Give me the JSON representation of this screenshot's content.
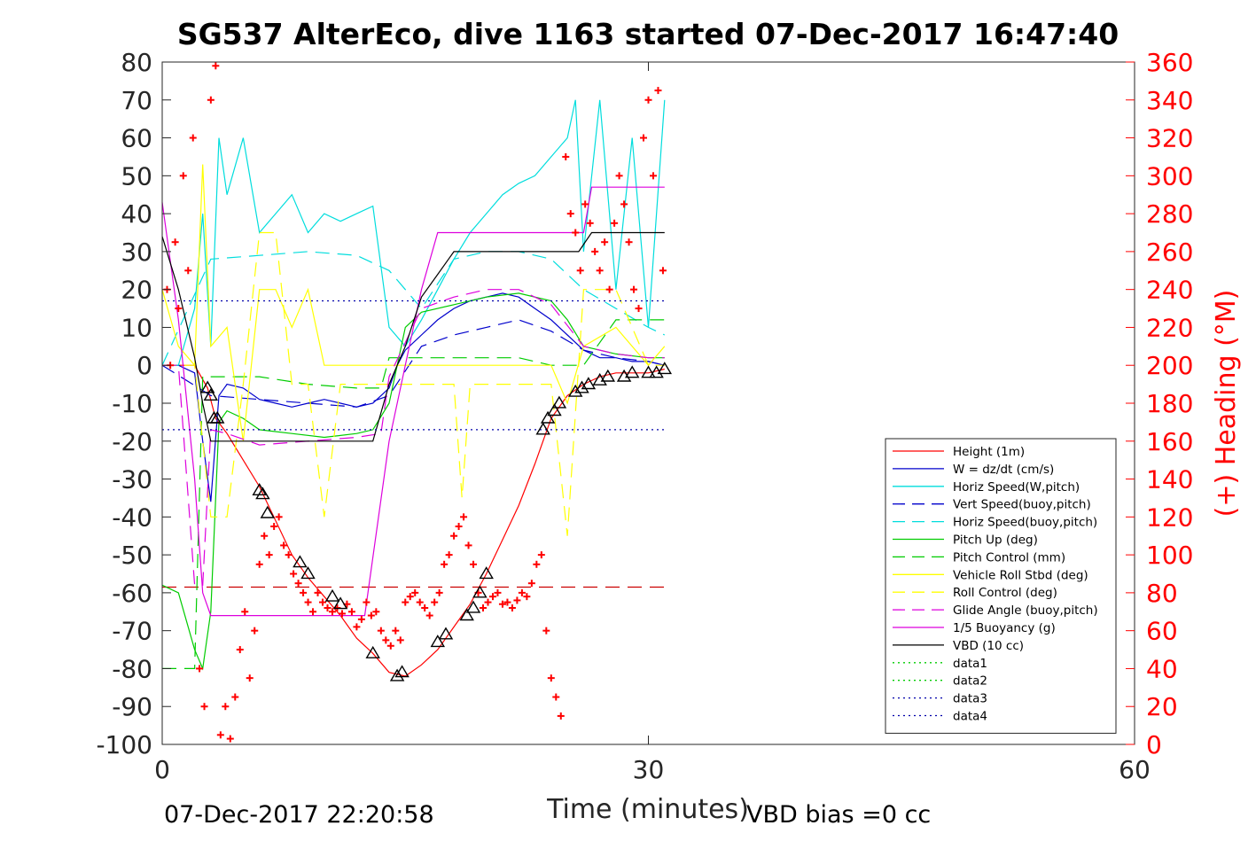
{
  "chart_data": {
    "type": "line",
    "title": "SG537 AlterEco, dive 1163 started 07-Dec-2017 16:47:40",
    "xlabel": "Time (minutes)",
    "ylabel": "",
    "y2label": "(+) Heading (°M)",
    "xlim": [
      0,
      60
    ],
    "ylim": [
      -100,
      80
    ],
    "y2lim": [
      0,
      360
    ],
    "x_ticks": [
      "0",
      "30",
      "60"
    ],
    "y_ticks": [
      "-100",
      "-90",
      "-80",
      "-70",
      "-60",
      "-50",
      "-40",
      "-30",
      "-20",
      "-10",
      "0",
      "10",
      "20",
      "30",
      "40",
      "50",
      "60",
      "70",
      "80"
    ],
    "y2_ticks": [
      "0",
      "20",
      "40",
      "60",
      "80",
      "100",
      "120",
      "140",
      "160",
      "180",
      "200",
      "220",
      "240",
      "260",
      "280",
      "300",
      "320",
      "340",
      "360"
    ],
    "grid": false,
    "legend_position": "bottom-right",
    "colors": {
      "heading": "#ff0000",
      "right_axis": "#ff0000"
    },
    "footer_left": "07-Dec-2017 22:20:58",
    "footer_right": "VBD bias =0 cc",
    "series": [
      {
        "name": "Height (1m)",
        "color": "#ff0000",
        "dash": "solid",
        "x": [
          0.0,
          2.0,
          2.8,
          3.3,
          4.0,
          5.0,
          6.0,
          7.0,
          8.0,
          9.0,
          10.0,
          11.0,
          12.0,
          13.0,
          14.0,
          15.0,
          16.0,
          17.0,
          18.0,
          19.0,
          20.0,
          21.0,
          22.0,
          23.0,
          24.0,
          25.0,
          26.0,
          27.0,
          28.0,
          29.0,
          30.0,
          31.0
        ],
        "y": [
          0,
          0,
          -6,
          -14,
          -18,
          -25,
          -32,
          -41,
          -50,
          -56,
          -61,
          -66,
          -72,
          -76,
          -81,
          -82,
          -79,
          -75,
          -69,
          -63,
          -55,
          -46,
          -37,
          -26,
          -14,
          -8,
          -5,
          -3,
          -2,
          -2,
          -2,
          -1
        ]
      },
      {
        "name": "W = dz/dt (cm/s)",
        "color": "#0000cc",
        "dash": "solid",
        "x": [
          0,
          1,
          2,
          2.5,
          3,
          3.5,
          4,
          5,
          6,
          7,
          8,
          9,
          10,
          11,
          12,
          13,
          14,
          14.5,
          15,
          16,
          17,
          18,
          19,
          20,
          21,
          22,
          23,
          24,
          25,
          26,
          27,
          28,
          29,
          30,
          31
        ],
        "y": [
          0,
          0,
          -2,
          -20,
          -36,
          -8,
          -5,
          -6,
          -9,
          -10,
          -11,
          -10,
          -9,
          -10,
          -11,
          -10,
          -6,
          0,
          4,
          8,
          12,
          15,
          17,
          18,
          19,
          18,
          15,
          12,
          8,
          4,
          2,
          2,
          1,
          1,
          0
        ]
      },
      {
        "name": "Horiz Speed(W,pitch)",
        "color": "#00dddd",
        "dash": "solid",
        "x": [
          0,
          1,
          2,
          2.5,
          3,
          3.5,
          4,
          5,
          6,
          7,
          8,
          9,
          10,
          11,
          12,
          13,
          14,
          15,
          16,
          17,
          18,
          19,
          20,
          21,
          22,
          23,
          24,
          25,
          25.5,
          26,
          27,
          28,
          29,
          30,
          31
        ],
        "y": [
          0,
          0,
          15,
          40,
          5,
          60,
          45,
          60,
          35,
          40,
          45,
          35,
          40,
          38,
          40,
          42,
          10,
          5,
          12,
          20,
          28,
          35,
          40,
          45,
          48,
          50,
          55,
          60,
          70,
          30,
          70,
          20,
          60,
          10,
          70
        ]
      },
      {
        "name": "Vert Speed(buoy,pitch)",
        "color": "#0000cc",
        "dash": "dashed",
        "x": [
          0,
          3,
          6,
          9,
          12,
          14,
          16,
          18,
          20,
          22,
          24,
          26,
          28,
          30,
          31
        ],
        "y": [
          0,
          -8,
          -9,
          -10,
          -11,
          -8,
          5,
          8,
          10,
          12,
          9,
          4,
          2,
          1,
          0
        ]
      },
      {
        "name": "Horiz Speed(buoy,pitch)",
        "color": "#00dddd",
        "dash": "dashed",
        "x": [
          0,
          3,
          6,
          9,
          12,
          14,
          16,
          18,
          20,
          22,
          24,
          26,
          28,
          30,
          31
        ],
        "y": [
          0,
          28,
          29,
          30,
          29,
          25,
          15,
          28,
          30,
          30,
          28,
          20,
          15,
          10,
          8
        ]
      },
      {
        "name": "Pitch Up (deg)",
        "color": "#00cc00",
        "dash": "solid",
        "x": [
          0,
          1,
          2,
          2.5,
          3,
          3.5,
          4,
          5,
          6,
          8,
          10,
          12,
          13,
          14,
          15,
          16,
          18,
          20,
          22,
          24,
          25,
          26,
          28,
          30,
          31
        ],
        "y": [
          -58,
          -60,
          -75,
          -80,
          -65,
          -15,
          -12,
          -14,
          -17,
          -18,
          -19,
          -18,
          -17,
          -10,
          10,
          14,
          16,
          18,
          19,
          17,
          12,
          5,
          3,
          2,
          2
        ]
      },
      {
        "name": "Pitch Control (mm)",
        "color": "#00cc00",
        "dash": "dashed",
        "x": [
          0,
          2,
          2.5,
          3,
          6,
          9,
          12,
          13.5,
          14,
          16,
          18,
          20,
          22,
          24,
          26,
          28,
          30,
          31
        ],
        "y": [
          -80,
          -80,
          -3,
          -3,
          -3,
          -5,
          -6,
          -6,
          2,
          2,
          2,
          2,
          2,
          0,
          0,
          12,
          12,
          12
        ]
      },
      {
        "name": "Vehicle Roll Stbd (deg)",
        "color": "#ffff00",
        "dash": "solid",
        "x": [
          0,
          1,
          2,
          2.5,
          3,
          4,
          5,
          6,
          7,
          8,
          9,
          10,
          12,
          14,
          16,
          18,
          20,
          22,
          24,
          25,
          26,
          28,
          30,
          31
        ],
        "y": [
          20,
          5,
          0,
          53,
          5,
          10,
          -20,
          20,
          20,
          10,
          20,
          0,
          0,
          0,
          0,
          0,
          0,
          0,
          0,
          -10,
          5,
          10,
          0,
          5
        ]
      },
      {
        "name": "Roll Control (deg)",
        "color": "#ffff00",
        "dash": "dashed",
        "x": [
          0,
          2,
          3,
          4,
          5,
          6,
          7,
          8,
          9,
          10,
          11,
          12,
          14,
          16,
          18,
          18.5,
          19,
          20,
          22,
          24,
          25,
          26,
          28,
          30,
          31
        ],
        "y": [
          0,
          0,
          -40,
          -40,
          -5,
          35,
          35,
          -5,
          -5,
          -40,
          -5,
          -5,
          -5,
          -5,
          -5,
          -35,
          -5,
          -5,
          -5,
          -5,
          -45,
          20,
          20,
          0,
          0
        ]
      },
      {
        "name": "Glide Angle (buoy,pitch)",
        "color": "#dd00dd",
        "dash": "dashed",
        "x": [
          0,
          1,
          2,
          2.5,
          3,
          4,
          6,
          9,
          12,
          13.5,
          14,
          16,
          18,
          20,
          22,
          24,
          26,
          28,
          30,
          31
        ],
        "y": [
          0,
          0,
          -58,
          -58,
          -17,
          -18,
          -21,
          -20,
          -19,
          -18,
          -3,
          15,
          18,
          20,
          20,
          16,
          5,
          3,
          2,
          2
        ]
      },
      {
        "name": "1/5 Buoyancy (g)",
        "color": "#dd00dd",
        "dash": "solid",
        "x": [
          0,
          1,
          2,
          2.5,
          3,
          4,
          6,
          8,
          10,
          12,
          12.5,
          14,
          16,
          17,
          18,
          20,
          22,
          24,
          25,
          26,
          26.5,
          28,
          30,
          31
        ],
        "y": [
          43,
          12,
          -30,
          -60,
          -66,
          -66,
          -66,
          -66,
          -66,
          -66,
          -66,
          -20,
          20,
          35,
          35,
          35,
          35,
          35,
          35,
          35,
          47,
          47,
          47,
          47
        ]
      },
      {
        "name": "VBD (10 cc)",
        "color": "#000000",
        "dash": "solid",
        "x": [
          0,
          1,
          2,
          2.5,
          3,
          4,
          6,
          8,
          10,
          12,
          13,
          14,
          15,
          16,
          17,
          18,
          20,
          22,
          24,
          25,
          25.7,
          26.5,
          28,
          30,
          31
        ],
        "y": [
          34,
          20,
          2,
          -10,
          -20,
          -20,
          -20,
          -20,
          -20,
          -20,
          -20,
          -5,
          5,
          18,
          24,
          30,
          30,
          30,
          30,
          30,
          30,
          35,
          35,
          35,
          35
        ]
      },
      {
        "name": "data1",
        "color": "#00cc00",
        "dash": "dotted",
        "x": [],
        "y": []
      },
      {
        "name": "data2",
        "color": "#00cc00",
        "dash": "dotted",
        "x": [],
        "y": []
      },
      {
        "name": "data3",
        "color": "#0000aa",
        "dash": "dotted",
        "x": [
          0,
          31
        ],
        "y": [
          17,
          17
        ]
      },
      {
        "name": "data4",
        "color": "#0000aa",
        "dash": "dotted",
        "x": [
          0,
          31
        ],
        "y": [
          -17,
          -17
        ]
      }
    ],
    "reference_lines": [
      {
        "color": "#cc0000",
        "dash": "dashed",
        "x": [
          0,
          31
        ],
        "y": [
          -58.5,
          -58.5
        ]
      }
    ],
    "dive_markers": {
      "color": "#000000",
      "x": [
        2.8,
        3.0,
        3.2,
        3.4,
        6.0,
        6.2,
        6.5,
        8.5,
        9.0,
        10.5,
        11.0,
        13.0,
        14.5,
        14.8,
        17.0,
        17.5,
        18.8,
        19.2,
        19.6,
        20.0,
        23.5,
        23.8,
        24.2,
        24.5,
        25.5,
        25.9,
        26.3,
        27.0,
        27.5,
        28.5,
        29.0,
        30.0,
        30.5,
        31.0
      ],
      "y": [
        -6,
        -8,
        -14,
        -14,
        -33,
        -34,
        -39,
        -52,
        -55,
        -61,
        -63,
        -76,
        -82,
        -81,
        -73,
        -71,
        -66,
        -64,
        -60,
        -55,
        -17,
        -14,
        -12,
        -10,
        -7,
        -6,
        -5,
        -4,
        -3,
        -3,
        -2,
        -2,
        -2,
        -1
      ]
    },
    "heading_points": {
      "name": "(+) Heading (°M)",
      "color": "#ff0000",
      "x": [
        0.3,
        0.5,
        0.8,
        1.0,
        1.3,
        1.6,
        1.9,
        2.3,
        2.6,
        3.0,
        3.3,
        3.6,
        3.9,
        4.2,
        4.5,
        4.8,
        5.1,
        5.4,
        5.7,
        6.0,
        6.3,
        6.6,
        6.9,
        7.2,
        7.5,
        7.8,
        8.1,
        8.4,
        8.7,
        9.0,
        9.3,
        9.6,
        9.9,
        10.2,
        10.5,
        10.8,
        11.1,
        11.4,
        11.7,
        12.0,
        12.3,
        12.6,
        12.9,
        13.2,
        13.5,
        13.8,
        14.1,
        14.4,
        14.7,
        15.0,
        15.3,
        15.6,
        15.9,
        16.2,
        16.5,
        16.8,
        17.1,
        17.4,
        17.7,
        18.0,
        18.3,
        18.6,
        18.9,
        19.2,
        19.5,
        19.8,
        20.1,
        20.4,
        20.7,
        21.0,
        21.3,
        21.6,
        21.9,
        22.2,
        22.5,
        22.8,
        23.1,
        23.4,
        23.7,
        24.0,
        24.3,
        24.6,
        24.9,
        25.2,
        25.5,
        25.8,
        26.1,
        26.4,
        26.7,
        27.0,
        27.3,
        27.6,
        27.9,
        28.2,
        28.5,
        28.8,
        29.1,
        29.4,
        29.7,
        30.0,
        30.3,
        30.6,
        30.9
      ],
      "y": [
        240,
        200,
        265,
        230,
        300,
        250,
        320,
        40,
        20,
        340,
        358,
        5,
        20,
        3,
        25,
        50,
        70,
        35,
        60,
        95,
        110,
        100,
        115,
        120,
        105,
        100,
        90,
        85,
        80,
        75,
        70,
        80,
        75,
        72,
        70,
        72,
        69,
        74,
        70,
        62,
        66,
        75,
        68,
        70,
        60,
        55,
        52,
        60,
        55,
        75,
        78,
        80,
        75,
        72,
        68,
        75,
        80,
        95,
        100,
        110,
        115,
        120,
        105,
        95,
        80,
        72,
        75,
        78,
        80,
        74,
        75,
        72,
        76,
        80,
        78,
        85,
        95,
        100,
        60,
        35,
        25,
        15,
        310,
        280,
        270,
        250,
        285,
        275,
        260,
        250,
        265,
        240,
        275,
        300,
        285,
        265,
        240,
        230,
        320,
        340,
        300,
        345,
        250
      ]
    }
  }
}
